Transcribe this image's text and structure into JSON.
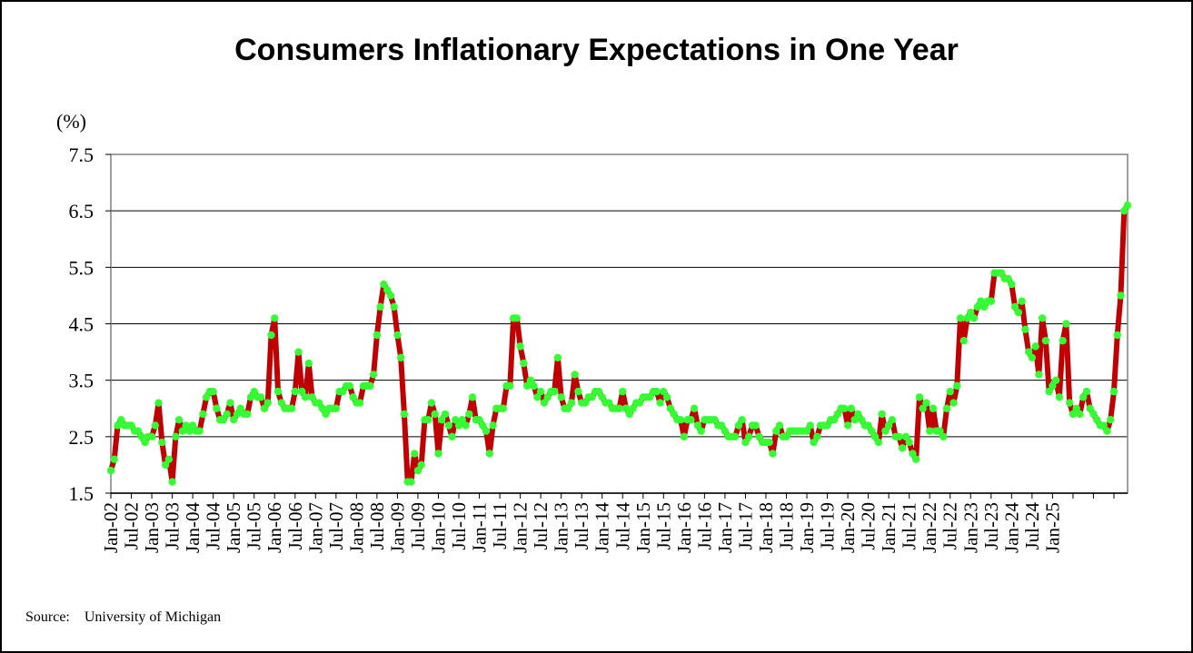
{
  "chart_data": {
    "type": "line",
    "title": "Consumers Inflationary Expectations in One Year",
    "ylabel": "(%)",
    "xlabel": "",
    "ylim": [
      1.5,
      7.5
    ],
    "yticks": [
      "1.5",
      "2.5",
      "3.5",
      "4.5",
      "5.5",
      "6.5",
      "7.5"
    ],
    "grid": "horizontal",
    "x_ticks": [
      "Jan-02",
      "Jul-02",
      "Jan-03",
      "Jul-03",
      "Jan-04",
      "Jul-04",
      "Jan-05",
      "Jul-05",
      "Jan-06",
      "Jul-06",
      "Jan-07",
      "Jul-07",
      "Jan-08",
      "Jul-08",
      "Jan-09",
      "Jul-09",
      "Jan-10",
      "Jul-10",
      "Jan-11",
      "Jul-11",
      "Jan-12",
      "Jul-12",
      "Jan-13",
      "Jul-13",
      "Jan-14",
      "Jul-14",
      "Jan-15",
      "Jul-15",
      "Jan-16",
      "Jul-16",
      "Jan-17",
      "Jul-17",
      "Jan-18",
      "Jul-18",
      "Jan-19",
      "Jul-19",
      "Jan-20",
      "Jul-20",
      "Jan-21",
      "Jul-21",
      "Jan-22",
      "Jul-22",
      "Jan-23",
      "Jul-23",
      "Jan-24",
      "Jul-24",
      "Jan-25"
    ],
    "x_start": "2002-01",
    "x_frequency": "monthly",
    "line_color": "#c00000",
    "marker_color": "#33ff33",
    "series": [
      {
        "values": [
          1.9,
          2.1,
          2.7,
          2.8,
          2.7,
          2.7,
          2.7,
          2.6,
          2.6,
          2.5,
          2.4,
          2.5,
          2.5,
          2.7,
          3.1,
          2.4,
          2.0,
          2.1,
          1.7,
          2.5,
          2.8,
          2.6,
          2.7,
          2.6,
          2.7,
          2.6,
          2.6,
          2.9,
          3.2,
          3.3,
          3.3,
          3.0,
          2.8,
          2.8,
          2.9,
          3.1,
          2.8,
          2.9,
          3.0,
          2.9,
          2.9,
          3.2,
          3.3,
          3.2,
          3.2,
          3.0,
          3.1,
          4.3,
          4.6,
          3.3,
          3.1,
          3.0,
          3.0,
          3.0,
          3.3,
          4.0,
          3.3,
          3.2,
          3.8,
          3.2,
          3.1,
          3.1,
          3.0,
          2.9,
          3.0,
          3.0,
          3.0,
          3.3,
          3.3,
          3.4,
          3.4,
          3.2,
          3.1,
          3.1,
          3.4,
          3.4,
          3.4,
          3.6,
          4.3,
          4.8,
          5.2,
          5.1,
          5.0,
          4.8,
          4.3,
          3.9,
          2.9,
          1.7,
          1.7,
          2.2,
          1.9,
          2.0,
          2.8,
          2.8,
          3.1,
          2.9,
          2.2,
          2.8,
          2.9,
          2.7,
          2.5,
          2.8,
          2.7,
          2.8,
          2.7,
          2.9,
          3.2,
          2.8,
          2.8,
          2.7,
          2.6,
          2.2,
          2.7,
          3.0,
          3.0,
          3.0,
          3.4,
          3.4,
          4.6,
          4.6,
          4.1,
          3.8,
          3.4,
          3.5,
          3.4,
          3.2,
          3.3,
          3.1,
          3.2,
          3.3,
          3.3,
          3.9,
          3.2,
          3.0,
          3.0,
          3.1,
          3.6,
          3.3,
          3.1,
          3.1,
          3.2,
          3.2,
          3.3,
          3.3,
          3.2,
          3.1,
          3.1,
          3.0,
          3.0,
          3.0,
          3.3,
          3.0,
          2.9,
          3.0,
          3.1,
          3.1,
          3.2,
          3.2,
          3.2,
          3.3,
          3.3,
          3.1,
          3.3,
          3.2,
          3.0,
          2.9,
          2.8,
          2.8,
          2.5,
          2.8,
          2.8,
          3.0,
          2.7,
          2.6,
          2.8,
          2.8,
          2.8,
          2.8,
          2.7,
          2.7,
          2.6,
          2.5,
          2.5,
          2.5,
          2.7,
          2.8,
          2.4,
          2.5,
          2.7,
          2.7,
          2.5,
          2.4,
          2.4,
          2.4,
          2.2,
          2.6,
          2.7,
          2.5,
          2.5,
          2.6,
          2.6,
          2.6,
          2.6,
          2.6,
          2.6,
          2.7,
          2.4,
          2.5,
          2.7,
          2.7,
          2.7,
          2.8,
          2.8,
          2.9,
          3.0,
          3.0,
          2.7,
          3.0,
          2.8,
          2.9,
          2.8,
          2.7,
          2.7,
          2.6,
          2.5,
          2.4,
          2.9,
          2.6,
          2.7,
          2.8,
          2.5,
          2.5,
          2.3,
          2.5,
          2.4,
          2.2,
          2.1,
          3.2,
          3.0,
          3.1,
          2.6,
          3.0,
          2.6,
          2.6,
          2.5,
          3.0,
          3.3,
          3.1,
          3.4,
          4.6,
          4.2,
          4.6,
          4.7,
          4.6,
          4.8,
          4.9,
          4.8,
          4.9,
          4.9,
          5.4,
          5.4,
          5.4,
          5.3,
          5.3,
          5.2,
          4.8,
          4.7,
          4.9,
          4.4,
          4.0,
          3.9,
          4.1,
          3.6,
          4.6,
          4.2,
          3.3,
          3.4,
          3.5,
          3.2,
          4.2,
          4.5,
          3.1,
          2.9,
          3.0,
          2.9,
          3.2,
          3.3,
          3.0,
          2.9,
          2.8,
          2.7,
          2.7,
          2.6,
          2.8,
          3.3,
          4.3,
          5.0,
          6.5,
          6.6
        ]
      }
    ]
  },
  "source": {
    "label": "Source:",
    "text": "University of Michigan"
  }
}
